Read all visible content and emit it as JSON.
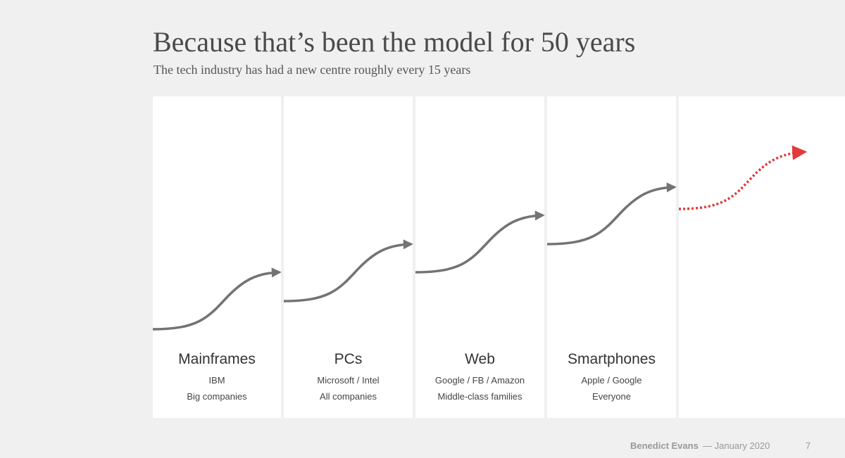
{
  "header": {
    "title": "Because that’s been the model for 50 years",
    "subtitle": "The tech industry has had a new centre roughly every 15 years"
  },
  "eras": [
    {
      "name": "Mainframes",
      "line1": "IBM",
      "line2": "Big companies"
    },
    {
      "name": "PCs",
      "line1": "Microsoft / Intel",
      "line2": "All companies"
    },
    {
      "name": "Web",
      "line1": "Google / FB / Amazon",
      "line2": "Middle-class families"
    },
    {
      "name": "Smartphones",
      "line1": "Apple / Google",
      "line2": "Everyone"
    }
  ],
  "colors": {
    "curve": "#737373",
    "future_curve": "#e03a3a",
    "panel": "#ffffff",
    "background": "#f0f0f0"
  },
  "footer": {
    "author": "Benedict Evans",
    "date": "— January 2020",
    "page": "7"
  }
}
